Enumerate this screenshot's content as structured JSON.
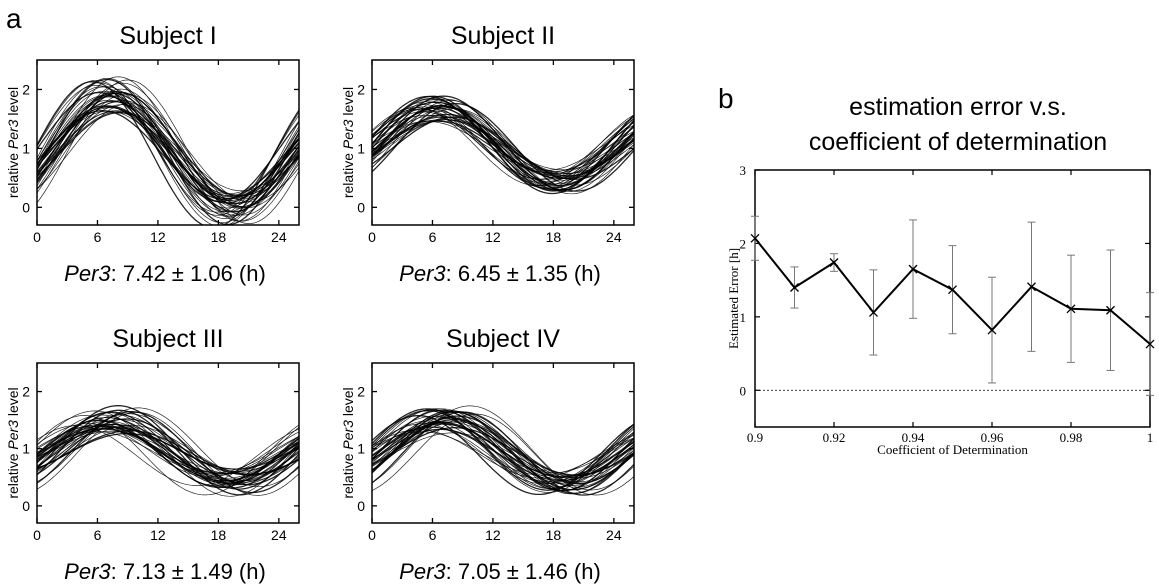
{
  "panel_a": {
    "letter": "a",
    "ylabel_prefix": "relative ",
    "ylabel_gene": "Per3",
    "ylabel_suffix": " level",
    "xticks": [
      "0",
      "6",
      "12",
      "18",
      "24"
    ],
    "yticks": [
      "0",
      "1",
      "2"
    ]
  },
  "panel_b": {
    "letter": "b"
  },
  "chart_data": [
    {
      "type": "line",
      "title": "Subject I",
      "caption_gene": "Per3",
      "caption_value": ": 7.42 ± 1.06  (h)",
      "ylabel": "relative Per3 level",
      "xlim": [
        0,
        26
      ],
      "ylim": [
        -0.3,
        2.5
      ],
      "curve_count": 40,
      "mean_level": 0.95,
      "amplitude": 0.95,
      "amplitude_spread": 0.3,
      "peak_time_mean": 7.42,
      "peak_time_sd": 1.06
    },
    {
      "type": "line",
      "title": "Subject II",
      "caption_gene": "Per3",
      "caption_value": ": 6.45 ± 1.35  (h)",
      "ylabel": "relative Per3 level",
      "xlim": [
        0,
        26
      ],
      "ylim": [
        -0.3,
        2.5
      ],
      "curve_count": 40,
      "mean_level": 1.05,
      "amplitude": 0.62,
      "amplitude_spread": 0.2,
      "peak_time_mean": 6.45,
      "peak_time_sd": 1.35
    },
    {
      "type": "line",
      "title": "Subject III",
      "caption_gene": "Per3",
      "caption_value": ": 7.13 ± 1.49 (h)",
      "ylabel": "relative Per3 level",
      "xlim": [
        0,
        26
      ],
      "ylim": [
        -0.3,
        2.5
      ],
      "curve_count": 40,
      "mean_level": 0.95,
      "amplitude": 0.55,
      "amplitude_spread": 0.2,
      "peak_time_mean": 7.13,
      "peak_time_sd": 1.49
    },
    {
      "type": "line",
      "title": "Subject IV",
      "caption_gene": "Per3",
      "caption_value": ": 7.05 ± 1.46 (h)",
      "ylabel": "relative Per3 level",
      "xlim": [
        0,
        26
      ],
      "ylim": [
        -0.3,
        2.5
      ],
      "curve_count": 40,
      "mean_level": 0.95,
      "amplitude": 0.55,
      "amplitude_spread": 0.2,
      "peak_time_mean": 7.05,
      "peak_time_sd": 1.46
    },
    {
      "type": "line",
      "title": "estimation error v.s. coefficient of determination",
      "title_line1": "estimation error v.s.",
      "title_line2": "coefficient of determination",
      "xlabel": "Coefficient of Determination",
      "ylabel": "Estimated Error [h]",
      "xlim": [
        0.9,
        1.0
      ],
      "ylim": [
        -0.5,
        3
      ],
      "xticks": [
        "0.9",
        "0.92",
        "0.94",
        "0.96",
        "0.98",
        "1"
      ],
      "yticks": [
        "0",
        "1",
        "2",
        "3"
      ],
      "x": [
        0.9,
        0.91,
        0.92,
        0.93,
        0.94,
        0.95,
        0.96,
        0.97,
        0.98,
        0.99,
        1.0
      ],
      "y": [
        2.07,
        1.4,
        1.74,
        1.06,
        1.65,
        1.37,
        0.82,
        1.41,
        1.11,
        1.09,
        0.63
      ],
      "error": [
        0.3,
        0.28,
        0.12,
        0.58,
        0.67,
        0.6,
        0.72,
        0.88,
        0.73,
        0.82,
        0.7
      ],
      "reference_line_y": 0
    }
  ]
}
